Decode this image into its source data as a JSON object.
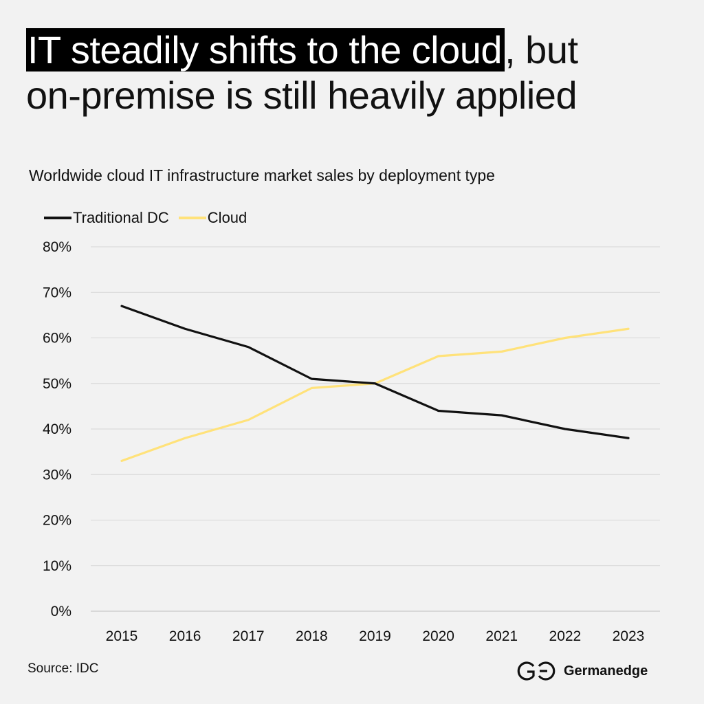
{
  "headline": {
    "highlight": "IT steadily shifts to the cloud",
    "rest_line1": ", but",
    "line2": "on-premise is still heavily applied"
  },
  "chart_data": {
    "type": "line",
    "title": "Worldwide cloud IT infrastructure market sales by deployment type",
    "x": [
      "2015",
      "2016",
      "2017",
      "2018",
      "2019",
      "2020",
      "2021",
      "2022",
      "2023"
    ],
    "series": [
      {
        "name": "Traditional DC",
        "color": "#111111",
        "values": [
          67,
          62,
          58,
          51,
          50,
          44,
          43,
          40,
          38
        ]
      },
      {
        "name": "Cloud",
        "color": "#ffe27a",
        "values": [
          33,
          38,
          42,
          49,
          50,
          56,
          57,
          60,
          62
        ]
      }
    ],
    "ylim": [
      0,
      80
    ],
    "yticks": [
      "0%",
      "10%",
      "20%",
      "30%",
      "40%",
      "50%",
      "60%",
      "70%",
      "80%"
    ],
    "grid": true,
    "legend_position": "top-left"
  },
  "footer": {
    "source": "Source: IDC",
    "brand": "Germanedge",
    "brand_icon": "germanedge-logo-icon"
  }
}
